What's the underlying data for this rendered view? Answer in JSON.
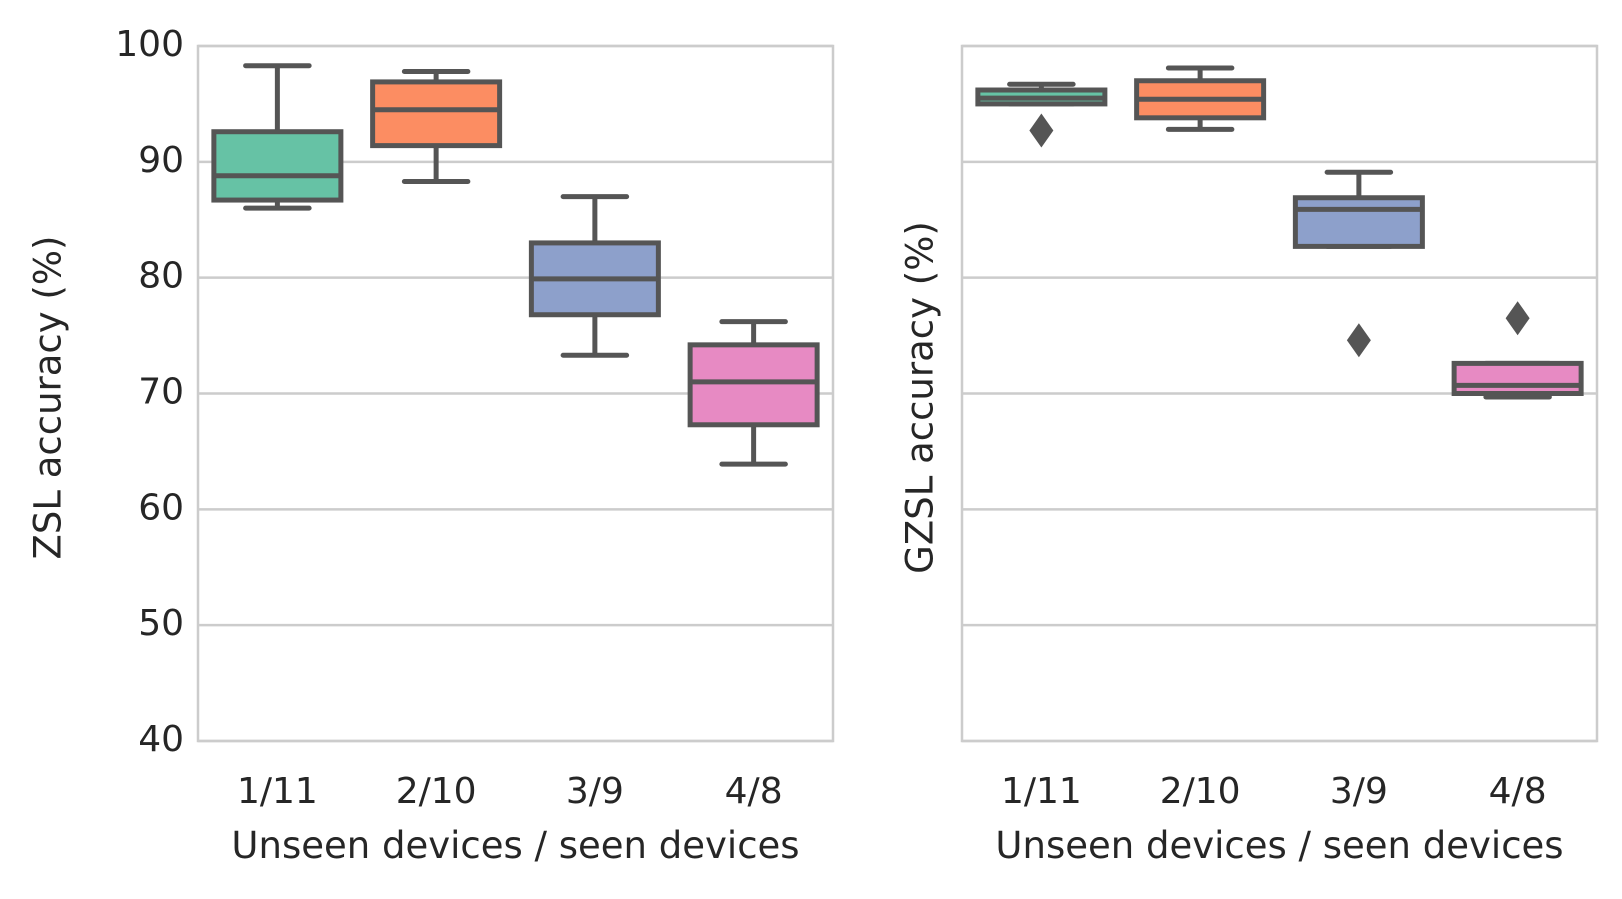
{
  "chart_data": [
    {
      "type": "boxplot",
      "ylabel": "ZSL accuracy (%)",
      "xlabel": "Unseen devices / seen devices",
      "ylim": [
        40,
        100
      ],
      "yticks": [
        40,
        50,
        60,
        70,
        80,
        90,
        100
      ],
      "grid": true,
      "categories": [
        "1/11",
        "2/10",
        "3/9",
        "4/8"
      ],
      "boxes": [
        {
          "category": "1/11",
          "whisker_low": 86.0,
          "q1": 86.7,
          "median": 88.8,
          "q3": 92.6,
          "whisker_high": 98.3,
          "outliers": [],
          "color": "#66c2a5"
        },
        {
          "category": "2/10",
          "whisker_low": 88.3,
          "q1": 91.4,
          "median": 94.5,
          "q3": 96.9,
          "whisker_high": 97.8,
          "outliers": [],
          "color": "#fc8d62"
        },
        {
          "category": "3/9",
          "whisker_low": 73.3,
          "q1": 76.8,
          "median": 79.9,
          "q3": 83.0,
          "whisker_high": 87.0,
          "outliers": [],
          "color": "#8da0cb"
        },
        {
          "category": "4/8",
          "whisker_low": 63.9,
          "q1": 67.3,
          "median": 71.0,
          "q3": 74.2,
          "whisker_high": 76.2,
          "outliers": [],
          "color": "#e78ac3"
        }
      ]
    },
    {
      "type": "boxplot",
      "ylabel": "GZSL accuracy (%)",
      "xlabel": "Unseen devices / seen devices",
      "ylim": [
        40,
        100
      ],
      "yticks": [
        40,
        50,
        60,
        70,
        80,
        90,
        100
      ],
      "grid": true,
      "sharey": true,
      "categories": [
        "1/11",
        "2/10",
        "3/9",
        "4/8"
      ],
      "boxes": [
        {
          "category": "1/11",
          "whisker_low": 95.0,
          "q1": 95.0,
          "median": 95.5,
          "q3": 96.2,
          "whisker_high": 96.7,
          "outliers": [
            92.7
          ],
          "color": "#66c2a5"
        },
        {
          "category": "2/10",
          "whisker_low": 92.8,
          "q1": 93.8,
          "median": 95.4,
          "q3": 97.0,
          "whisker_high": 98.1,
          "outliers": [],
          "color": "#fc8d62"
        },
        {
          "category": "3/9",
          "whisker_low": 82.7,
          "q1": 82.7,
          "median": 85.9,
          "q3": 86.9,
          "whisker_high": 89.1,
          "outliers": [
            74.6
          ],
          "color": "#8da0cb"
        },
        {
          "category": "4/8",
          "whisker_low": 69.7,
          "q1": 70.0,
          "median": 70.7,
          "q3": 72.6,
          "whisker_high": 72.6,
          "outliers": [
            76.5
          ],
          "color": "#e78ac3"
        }
      ]
    }
  ]
}
